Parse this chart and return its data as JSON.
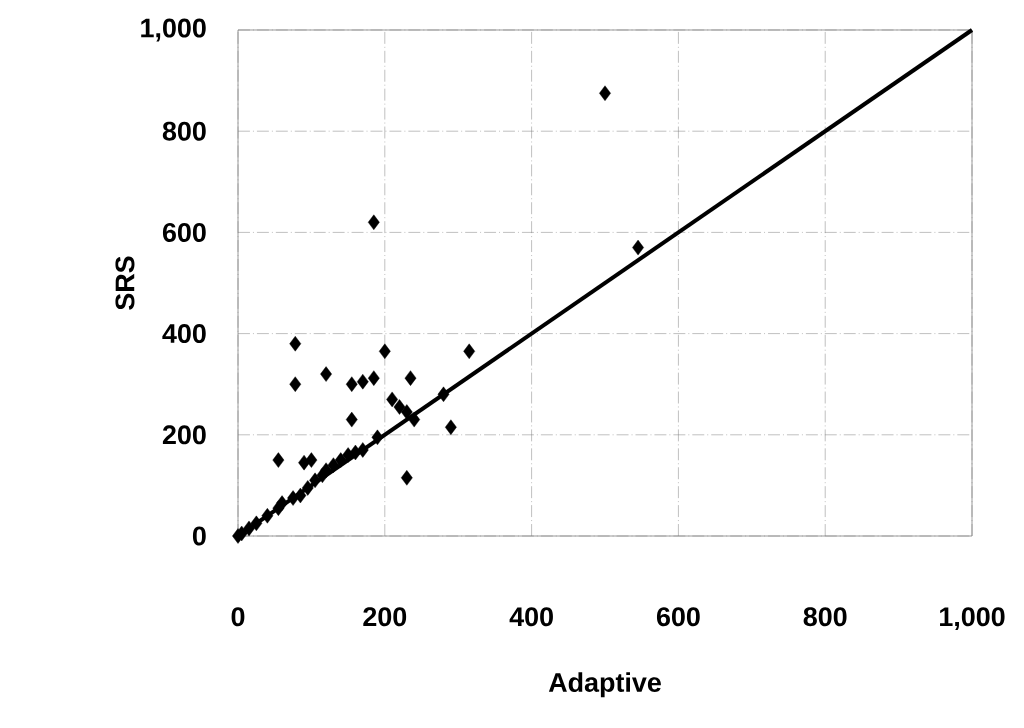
{
  "chart_data": {
    "type": "scatter",
    "xlabel": "Adaptive",
    "ylabel": "SRS",
    "xlim": [
      0,
      1000
    ],
    "ylim": [
      0,
      1000
    ],
    "xticks": [
      0,
      200,
      400,
      600,
      800,
      {
        "value": 1000,
        "label": "1,000"
      }
    ],
    "yticks": [
      0,
      200,
      400,
      600,
      800,
      {
        "value": 1000,
        "label": "1,000"
      }
    ],
    "grid": true,
    "series": [
      {
        "marker": "diamond",
        "color": "#000000",
        "x": [
          0,
          5,
          15,
          25,
          40,
          55,
          60,
          75,
          85,
          95,
          105,
          115,
          120,
          130,
          140,
          150,
          160,
          170,
          55,
          90,
          100,
          155,
          190,
          230,
          210,
          220,
          230,
          240,
          280,
          290,
          545,
          500,
          185,
          78,
          78,
          120,
          155,
          170,
          185,
          235,
          200,
          315
        ],
        "values": [
          0,
          5,
          15,
          25,
          40,
          55,
          65,
          75,
          80,
          95,
          110,
          120,
          130,
          140,
          150,
          160,
          165,
          170,
          150,
          145,
          150,
          230,
          195,
          115,
          270,
          255,
          245,
          230,
          280,
          215,
          570,
          875,
          620,
          380,
          300,
          320,
          300,
          305,
          312,
          312,
          365,
          365
        ]
      },
      {
        "type": "line",
        "marker": "none",
        "color": "#000000",
        "line_style": "solid",
        "x": [
          0,
          1000
        ],
        "values": [
          0,
          1000
        ]
      }
    ]
  }
}
